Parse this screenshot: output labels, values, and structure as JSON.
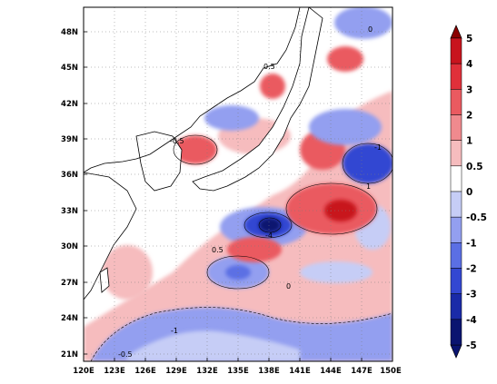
{
  "map": {
    "extent": {
      "lon": [
        120,
        150
      ],
      "lat": [
        20,
        50
      ]
    },
    "x_ticks": [
      "120E",
      "123E",
      "126E",
      "129E",
      "132E",
      "135E",
      "138E",
      "141E",
      "144E",
      "147E",
      "150E"
    ],
    "y_ticks": [
      "21N",
      "24N",
      "27N",
      "30N",
      "33N",
      "36N",
      "39N",
      "42N",
      "45N",
      "48N"
    ],
    "contour_labels": [
      "0.5",
      "0",
      "-0.5",
      "-1",
      "-4",
      "1",
      "0.5",
      "0",
      "-0.5",
      "-1"
    ],
    "gridlines": "dotted"
  },
  "colorbar": {
    "levels": [
      "5",
      "4",
      "3",
      "2",
      "1",
      "0.5",
      "0",
      "-0.5",
      "-1",
      "-2",
      "-3",
      "-4",
      "-5"
    ],
    "colors": [
      "#8b0000",
      "#c8141e",
      "#e0303a",
      "#ea5a60",
      "#f08a8e",
      "#f6bcbe",
      "#ffffff",
      "#c6cdf6",
      "#939ff0",
      "#5b6fe4",
      "#3347d2",
      "#1a2aa8",
      "#0a1470"
    ]
  }
}
